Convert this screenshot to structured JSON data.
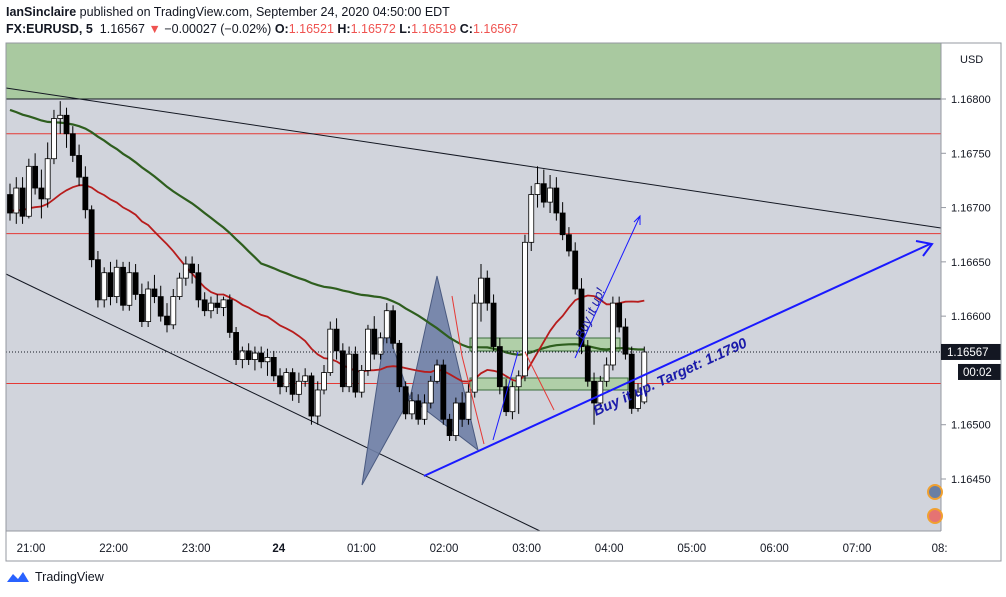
{
  "header": {
    "author": "IanSinclaire",
    "published": "published on TradingView.com, September 24, 2020 04:50:00 EDT",
    "symbol": "FX:EURUSD, 5",
    "last": "1.16567",
    "arrow": "▼",
    "change": "−0.00027 (−0.02%)",
    "o_label": "O:",
    "o": "1.16521",
    "h_label": "H:",
    "h": "1.16572",
    "l_label": "L:",
    "l": "1.16519",
    "c_label": "C:",
    "c": "1.16567"
  },
  "footer": {
    "brand": "TradingView"
  },
  "colors": {
    "background": "#d1d4dc",
    "bull": "#ffffff",
    "bear": "#000000",
    "ma_green": "#2e5e1e",
    "ma_red": "#b71c1c",
    "hline": "#e53935",
    "drawing_blue": "#1a1aff",
    "zone_green": "#a5c9a0",
    "pattern_fill": "#6a7fa3"
  },
  "chart_data": {
    "type": "candlestick",
    "currency_label": "USD",
    "price_axis": {
      "min": 1.164,
      "max": 1.1682,
      "ticks": [
        "1.16800",
        "1.16750",
        "1.16700",
        "1.16650",
        "1.16600",
        "1.16500",
        "1.16450"
      ]
    },
    "time_axis": {
      "ticks": [
        "21:00",
        "22:00",
        "23:00",
        "24",
        "01:00",
        "02:00",
        "03:00",
        "04:00",
        "05:00",
        "06:00",
        "07:00",
        "08:"
      ]
    },
    "last_price_label": "1.16567",
    "countdown_label": "00:02",
    "horizontal_lines": [
      1.16768,
      1.16676,
      1.16538
    ],
    "top_zone_from": 1.168,
    "annotations": [
      "Buy it up. Target: 1.1790",
      "Buy it up!"
    ],
    "candles": [
      [
        1.16712,
        1.16722,
        1.16688,
        1.16695
      ],
      [
        1.16695,
        1.16728,
        1.16685,
        1.16718
      ],
      [
        1.16718,
        1.16728,
        1.16685,
        1.16692
      ],
      [
        1.16692,
        1.16745,
        1.1669,
        1.16738
      ],
      [
        1.16738,
        1.1675,
        1.16712,
        1.16718
      ],
      [
        1.16718,
        1.16735,
        1.1669,
        1.16708
      ],
      [
        1.16708,
        1.1676,
        1.167,
        1.16745
      ],
      [
        1.16745,
        1.1679,
        1.1674,
        1.16782
      ],
      [
        1.16782,
        1.16798,
        1.16768,
        1.16785
      ],
      [
        1.16785,
        1.16792,
        1.16755,
        1.16768
      ],
      [
        1.16768,
        1.16775,
        1.16742,
        1.16748
      ],
      [
        1.16748,
        1.16758,
        1.1672,
        1.16728
      ],
      [
        1.16728,
        1.16738,
        1.1669,
        1.16698
      ],
      [
        1.16698,
        1.16702,
        1.16645,
        1.16652
      ],
      [
        1.16652,
        1.1666,
        1.16608,
        1.16615
      ],
      [
        1.16615,
        1.16645,
        1.16608,
        1.1664
      ],
      [
        1.1664,
        1.1665,
        1.1661,
        1.16618
      ],
      [
        1.16618,
        1.16652,
        1.16612,
        1.16645
      ],
      [
        1.16645,
        1.1665,
        1.16605,
        1.1661
      ],
      [
        1.1661,
        1.1665,
        1.16605,
        1.1664
      ],
      [
        1.1664,
        1.16648,
        1.16615,
        1.1662
      ],
      [
        1.1662,
        1.1663,
        1.1659,
        1.16595
      ],
      [
        1.16595,
        1.16632,
        1.1659,
        1.16625
      ],
      [
        1.16625,
        1.16638,
        1.16612,
        1.16618
      ],
      [
        1.16618,
        1.16628,
        1.16595,
        1.166
      ],
      [
        1.166,
        1.16612,
        1.16585,
        1.16592
      ],
      [
        1.16592,
        1.16625,
        1.16588,
        1.16618
      ],
      [
        1.16618,
        1.1664,
        1.16615,
        1.16635
      ],
      [
        1.16635,
        1.16655,
        1.16628,
        1.16648
      ],
      [
        1.16648,
        1.16655,
        1.1663,
        1.1664
      ],
      [
        1.1664,
        1.16648,
        1.16608,
        1.16615
      ],
      [
        1.16615,
        1.16622,
        1.166,
        1.16605
      ],
      [
        1.16605,
        1.16618,
        1.16598,
        1.16612
      ],
      [
        1.16612,
        1.1662,
        1.16602,
        1.16608
      ],
      [
        1.16608,
        1.16618,
        1.166,
        1.16615
      ],
      [
        1.16615,
        1.1662,
        1.1658,
        1.16585
      ],
      [
        1.16585,
        1.1659,
        1.16555,
        1.1656
      ],
      [
        1.1656,
        1.16572,
        1.16552,
        1.16568
      ],
      [
        1.16568,
        1.16575,
        1.16555,
        1.1656
      ],
      [
        1.1656,
        1.16572,
        1.1655,
        1.16566
      ],
      [
        1.16566,
        1.16572,
        1.16552,
        1.16558
      ],
      [
        1.16558,
        1.1657,
        1.16545,
        1.16562
      ],
      [
        1.16562,
        1.16568,
        1.1654,
        1.16545
      ],
      [
        1.16545,
        1.16552,
        1.16528,
        1.16535
      ],
      [
        1.16535,
        1.16552,
        1.1653,
        1.16548
      ],
      [
        1.16548,
        1.16552,
        1.16522,
        1.16528
      ],
      [
        1.16528,
        1.16548,
        1.1652,
        1.1654
      ],
      [
        1.1654,
        1.16552,
        1.16535,
        1.16545
      ],
      [
        1.16545,
        1.16548,
        1.165,
        1.16508
      ],
      [
        1.16508,
        1.1654,
        1.165,
        1.16532
      ],
      [
        1.16532,
        1.16555,
        1.16528,
        1.16548
      ],
      [
        1.16548,
        1.16595,
        1.16545,
        1.16588
      ],
      [
        1.16588,
        1.16598,
        1.1656,
        1.16568
      ],
      [
        1.16568,
        1.16575,
        1.1653,
        1.16535
      ],
      [
        1.16535,
        1.16572,
        1.1653,
        1.16565
      ],
      [
        1.16565,
        1.16572,
        1.16525,
        1.1653
      ],
      [
        1.1653,
        1.16555,
        1.16525,
        1.1655
      ],
      [
        1.1655,
        1.16592,
        1.16545,
        1.16588
      ],
      [
        1.16588,
        1.166,
        1.1656,
        1.16565
      ],
      [
        1.16565,
        1.16585,
        1.1656,
        1.1658
      ],
      [
        1.1658,
        1.16612,
        1.16575,
        1.16605
      ],
      [
        1.16605,
        1.1661,
        1.1657,
        1.16575
      ],
      [
        1.16575,
        1.16578,
        1.1653,
        1.16535
      ],
      [
        1.16535,
        1.1654,
        1.16505,
        1.1651
      ],
      [
        1.1651,
        1.1653,
        1.16505,
        1.16522
      ],
      [
        1.16522,
        1.16528,
        1.165,
        1.16505
      ],
      [
        1.16505,
        1.16528,
        1.165,
        1.1652
      ],
      [
        1.1652,
        1.16545,
        1.16515,
        1.1654
      ],
      [
        1.1654,
        1.1656,
        1.16538,
        1.16555
      ],
      [
        1.16555,
        1.1656,
        1.165,
        1.16505
      ],
      [
        1.16505,
        1.1651,
        1.16485,
        1.1649
      ],
      [
        1.1649,
        1.16525,
        1.16485,
        1.1652
      ],
      [
        1.1652,
        1.1653,
        1.16498,
        1.16505
      ],
      [
        1.16505,
        1.16538,
        1.165,
        1.1653
      ],
      [
        1.1653,
        1.1662,
        1.16525,
        1.16612
      ],
      [
        1.16612,
        1.16648,
        1.16595,
        1.16635
      ],
      [
        1.16635,
        1.16642,
        1.16605,
        1.16612
      ],
      [
        1.16612,
        1.1662,
        1.16568,
        1.16572
      ],
      [
        1.16572,
        1.1658,
        1.16528,
        1.16535
      ],
      [
        1.16535,
        1.16542,
        1.16508,
        1.16512
      ],
      [
        1.16512,
        1.1654,
        1.16505,
        1.16535
      ],
      [
        1.16535,
        1.1655,
        1.1651,
        1.16545
      ],
      [
        1.16545,
        1.16675,
        1.1654,
        1.16668
      ],
      [
        1.16668,
        1.1672,
        1.1666,
        1.16712
      ],
      [
        1.16712,
        1.16738,
        1.167,
        1.16722
      ],
      [
        1.16722,
        1.16735,
        1.167,
        1.16705
      ],
      [
        1.16705,
        1.1673,
        1.16695,
        1.16718
      ],
      [
        1.16718,
        1.16728,
        1.16688,
        1.16695
      ],
      [
        1.16695,
        1.16705,
        1.1667,
        1.16675
      ],
      [
        1.16675,
        1.16682,
        1.16655,
        1.1666
      ],
      [
        1.1666,
        1.16668,
        1.1662,
        1.16625
      ],
      [
        1.16625,
        1.16635,
        1.16565,
        1.16572
      ],
      [
        1.16572,
        1.16578,
        1.16535,
        1.1654
      ],
      [
        1.1654,
        1.16548,
        1.165,
        1.1652
      ],
      [
        1.1652,
        1.16545,
        1.16515,
        1.1654
      ],
      [
        1.1654,
        1.16562,
        1.16535,
        1.16555
      ],
      [
        1.16555,
        1.16618,
        1.1655,
        1.16612
      ],
      [
        1.16612,
        1.16618,
        1.16585,
        1.1659
      ],
      [
        1.1659,
        1.16598,
        1.1656,
        1.16565
      ],
      [
        1.16565,
        1.16572,
        1.1651,
        1.16515
      ],
      [
        1.16515,
        1.16538,
        1.16512,
        1.1653
      ],
      [
        1.16521,
        1.16572,
        1.16519,
        1.16567
      ]
    ]
  }
}
